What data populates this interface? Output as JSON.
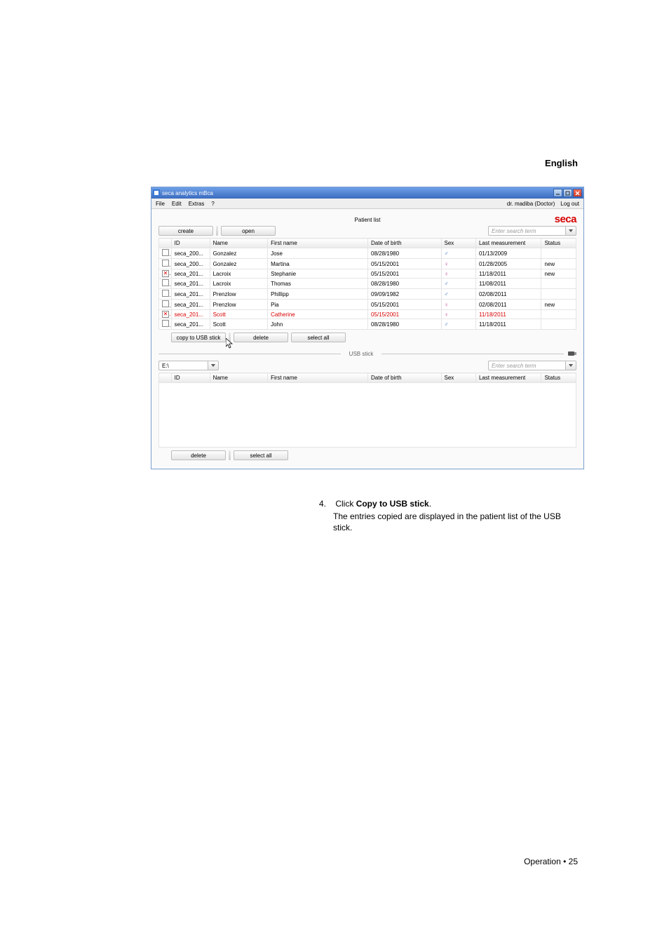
{
  "page": {
    "language_label": "English",
    "footer": "Operation • 25"
  },
  "window": {
    "title": "seca analytics mBca",
    "menu": {
      "file": "File",
      "edit": "Edit",
      "extras": "Extras",
      "help": "?"
    },
    "user_info": "dr. madiba (Doctor)",
    "logout": "Log out",
    "brand": "seca"
  },
  "patient": {
    "section_title": "Patient list",
    "create_btn": "create",
    "open_btn": "open",
    "search_placeholder": "Enter search term",
    "columns": {
      "id": "ID",
      "name": "Name",
      "first_name": "First name",
      "dob": "Date of birth",
      "sex": "Sex",
      "last": "Last measurement",
      "status": "Status"
    },
    "rows": [
      {
        "checked": false,
        "id": "seca_200...",
        "name": "Gonzalez",
        "first": "Jose",
        "dob": "08/28/1980",
        "sex": "m",
        "last": "01/13/2009",
        "status": ""
      },
      {
        "checked": false,
        "id": "seca_200...",
        "name": "Gonzalez",
        "first": "Martina",
        "dob": "05/15/2001",
        "sex": "f",
        "last": "01/28/2005",
        "status": "new"
      },
      {
        "checked": true,
        "id": "seca_201...",
        "name": "Lacroix",
        "first": "Stephanie",
        "dob": "05/15/2001",
        "sex": "f",
        "last": "11/18/2011",
        "status": "new"
      },
      {
        "checked": false,
        "id": "seca_201...",
        "name": "Lacroix",
        "first": "Thomas",
        "dob": "08/28/1980",
        "sex": "m",
        "last": "11/08/2011",
        "status": ""
      },
      {
        "checked": false,
        "id": "seca_201...",
        "name": "Prenzlow",
        "first": "Phillipp",
        "dob": "09/09/1982",
        "sex": "m",
        "last": "02/08/2011",
        "status": ""
      },
      {
        "checked": false,
        "id": "seca_201...",
        "name": "Prenzlow",
        "first": "Pia",
        "dob": "05/15/2001",
        "sex": "f",
        "last": "02/08/2011",
        "status": "new"
      },
      {
        "checked": true,
        "id": "seca_201...",
        "name": "Scott",
        "first": "Catherine",
        "dob": "05/15/2001",
        "sex": "f",
        "last": "11/18/2011",
        "status": "",
        "selected": true
      },
      {
        "checked": false,
        "id": "seca_201...",
        "name": "Scott",
        "first": "John",
        "dob": "08/28/1980",
        "sex": "m",
        "last": "11/18/2011",
        "status": ""
      }
    ],
    "actions": {
      "copy_usb": "copy to USB stick",
      "delete": "delete",
      "select_all": "select all"
    }
  },
  "stick": {
    "divider_label": "USB stick",
    "drive": "E:\\",
    "search_placeholder": "Enter search term",
    "columns": {
      "id": "ID",
      "name": "Name",
      "first_name": "First name",
      "dob": "Date of birth",
      "sex": "Sex",
      "last": "Last measurement",
      "status": "Status"
    },
    "actions": {
      "delete": "delete",
      "select_all": "select all"
    }
  },
  "instruction": {
    "step_num": "4.",
    "step_prefix": "Click ",
    "step_bold": "Copy to USB stick",
    "step_suffix": ".",
    "desc": "The entries copied are displayed in the patient list of the USB stick."
  },
  "colors": {
    "brand_red": "#d80000",
    "highlight_red": "#d80000",
    "male": "#2a6cc0",
    "female": "#c2358f"
  }
}
